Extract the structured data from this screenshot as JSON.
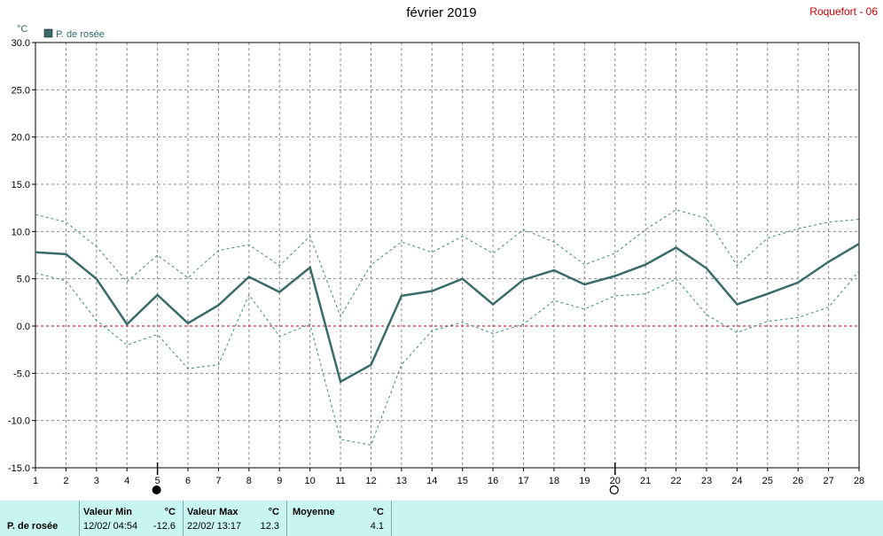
{
  "header": {
    "title": "février 2019",
    "station": "Roquefort - 06"
  },
  "chart_data": {
    "type": "line",
    "title": "février 2019",
    "ylabel": "°C",
    "ylim": [
      -15,
      30
    ],
    "yticks": [
      "30.0",
      "25.0",
      "20.0",
      "15.0",
      "10.0",
      "5.0",
      "0.0",
      "-5.0",
      "-10.0",
      "-15.0"
    ],
    "categories": [
      1,
      2,
      3,
      4,
      5,
      6,
      7,
      8,
      9,
      10,
      11,
      12,
      13,
      14,
      15,
      16,
      17,
      18,
      19,
      20,
      21,
      22,
      23,
      24,
      25,
      26,
      27,
      28
    ],
    "legend": "top-left",
    "grid": true,
    "series": [
      {
        "name": "P. de rosée",
        "style": "solid",
        "color": "#3a6b6c",
        "values": [
          7.8,
          7.6,
          5.0,
          0.2,
          3.3,
          0.3,
          2.2,
          5.2,
          3.6,
          6.2,
          -5.9,
          -4.1,
          3.2,
          3.7,
          5.0,
          2.3,
          4.9,
          5.9,
          4.4,
          5.3,
          6.5,
          8.3,
          6.1,
          2.3,
          3.4,
          4.6,
          6.8,
          8.7
        ]
      },
      {
        "style": "dashed",
        "color": "#3a8a8a",
        "values": [
          11.8,
          11.0,
          8.4,
          4.7,
          7.5,
          5.1,
          8.0,
          8.6,
          6.4,
          9.5,
          1.0,
          6.5,
          8.9,
          7.8,
          9.5,
          7.7,
          10.2,
          8.9,
          6.5,
          7.7,
          10.2,
          12.3,
          11.4,
          6.4,
          9.3,
          10.3,
          11.0,
          11.3
        ]
      },
      {
        "style": "dashed",
        "color": "#3a8a8a",
        "values": [
          5.6,
          4.8,
          0.6,
          -2.0,
          -0.9,
          -4.5,
          -4.1,
          3.3,
          -1.1,
          0.2,
          -12.0,
          -12.6,
          -4.1,
          -0.5,
          0.4,
          -0.8,
          0.2,
          2.7,
          1.8,
          3.2,
          3.4,
          5.0,
          1.2,
          -0.7,
          0.5,
          0.9,
          2.0,
          5.8
        ]
      }
    ],
    "zero_line_color": "#cc0000",
    "moon_markers": [
      {
        "day": 5,
        "phase": "full"
      },
      {
        "day": 20,
        "phase": "new"
      }
    ]
  },
  "footer": {
    "row_label": "P. de rosée",
    "min": {
      "title": "Valeur Min",
      "unit": "°C",
      "date": "12/02/  04:54",
      "value": "-12.6"
    },
    "max": {
      "title": "Valeur Max",
      "unit": "°C",
      "date": "22/02/  13:17",
      "value": "12.3"
    },
    "avg": {
      "title": "Moyenne",
      "unit": "°C",
      "value": "4.1"
    }
  }
}
